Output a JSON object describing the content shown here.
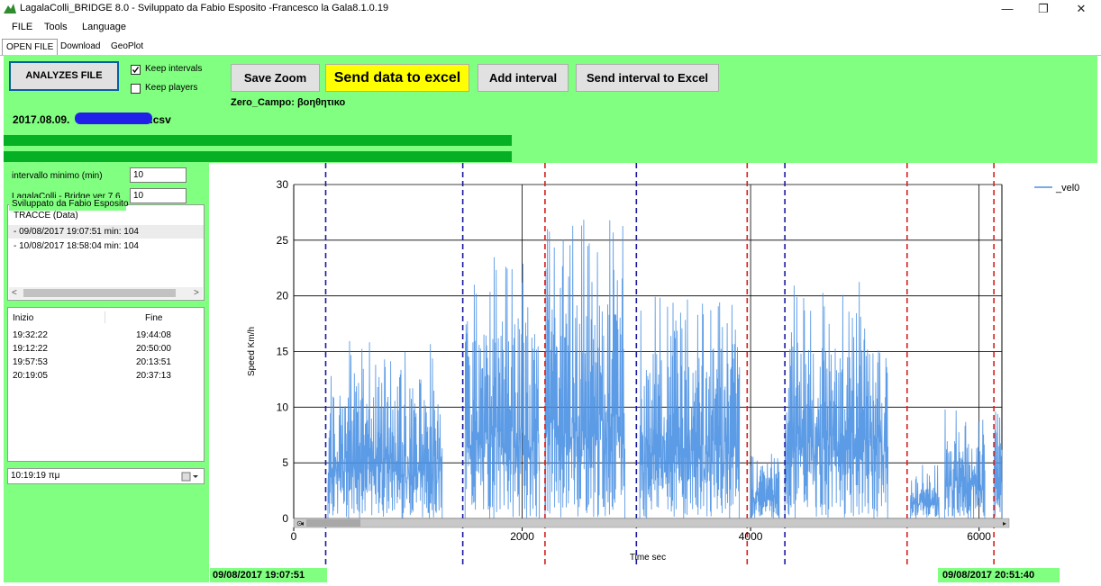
{
  "window": {
    "title": "LagalaColli_BRIDGE 8.0 -  Sviluppato da Fabio Esposito -Francesco la Gala8.1.0.19",
    "minimize": "—",
    "maximize": "❐",
    "close": "✕"
  },
  "menu": {
    "items": [
      "FILE",
      "Tools",
      "Language"
    ]
  },
  "tabs": {
    "items": [
      "OPEN FILE",
      "Download",
      "GeoPlot"
    ],
    "active": "OPEN FILE"
  },
  "toolbar": {
    "analyze_label": "ANALYZES FILE",
    "keep_intervals_label": "Keep intervals",
    "keep_intervals_checked": true,
    "keep_players_label": "Keep players",
    "keep_players_checked": false,
    "save_zoom_label": "Save Zoom",
    "send_excel_label": "Send data to excel",
    "add_interval_label": "Add interval",
    "send_interval_label": "Send interval to  Excel",
    "zero_campo": "Zero_Campo: βοηθητικο",
    "filename_prefix": "2017.08.09.",
    "filename_suffix": ".csv",
    "progress1": 1.0,
    "progress2": 1.0
  },
  "left": {
    "interval_min_label": "intervallo minimo  (min)",
    "interval_min_value": "10",
    "version_label": "LagalaColli - Bridge ver 7.6",
    "version_value": "10",
    "developer_label": "Sviluppato da Fabio Esposito",
    "traces_header": "TRACCE  (Data)",
    "traces": [
      "- 09/08/2017 19:07:51 min:  104",
      "- 10/08/2017 18:58:04 min:  104"
    ],
    "intervals_header_start": "Inizio",
    "intervals_header_end": "Fine",
    "intervals": [
      {
        "start": "19:32:22",
        "end": "19:44:08"
      },
      {
        "start": "19:12:22",
        "end": "20:50:00"
      },
      {
        "start": "19:57:53",
        "end": "20:13:51"
      },
      {
        "start": "20:19:05",
        "end": "20:37:13"
      }
    ],
    "time_picker_value": "10:19:19 πμ"
  },
  "dates": {
    "start": "09/08/2017 19:07:51",
    "end": "09/08/2017 20:51:40"
  },
  "chart_data": {
    "type": "line",
    "xlabel": "Time sec",
    "ylabel": "Speed Km/h",
    "xlim": [
      0,
      6200
    ],
    "ylim": [
      0,
      30
    ],
    "xticks": [
      0,
      2000,
      4000,
      6000
    ],
    "yticks": [
      0,
      5,
      10,
      15,
      20,
      25,
      30
    ],
    "grid": true,
    "legend_position": "top-right",
    "series": [
      {
        "name": "_vel0",
        "color": "#4a90e2"
      }
    ],
    "blue_markers_x": [
      280,
      1480,
      3000,
      4300
    ],
    "red_markers_x": [
      2200,
      3970,
      5370,
      6130
    ],
    "black_markers_x": [
      2000,
      4000,
      6000
    ],
    "activity_blocks": [
      {
        "x0": 300,
        "x1": 1300,
        "peak": 16
      },
      {
        "x0": 1500,
        "x1": 2150,
        "peak": 24
      },
      {
        "x0": 2200,
        "x1": 2900,
        "peak": 27
      },
      {
        "x0": 3030,
        "x1": 3900,
        "peak": 20
      },
      {
        "x0": 4000,
        "x1": 4250,
        "peak": 6
      },
      {
        "x0": 4300,
        "x1": 5200,
        "peak": 22
      },
      {
        "x0": 5400,
        "x1": 5650,
        "peak": 5
      },
      {
        "x0": 5700,
        "x1": 6050,
        "peak": 10
      },
      {
        "x0": 6130,
        "x1": 6200,
        "peak": 11
      }
    ],
    "colors": {
      "blue_line": "#1a1aa0",
      "red_line": "#d42020",
      "series": "#4a90e2"
    }
  }
}
